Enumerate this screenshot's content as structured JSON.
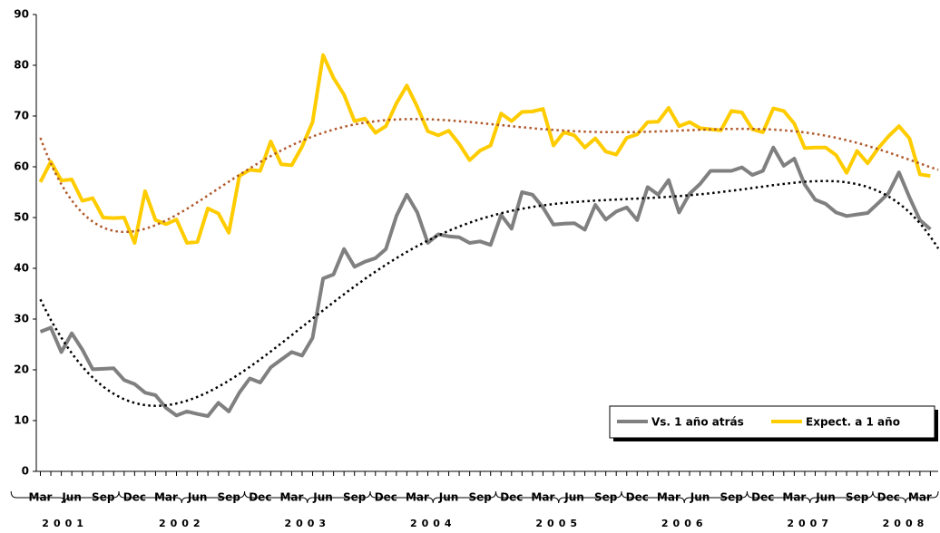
{
  "chart_data": {
    "type": "line",
    "categories": [
      "Mar",
      null,
      null,
      "Jun",
      null,
      null,
      "Sep",
      null,
      null,
      "Dec",
      null,
      null,
      "Mar",
      null,
      null,
      "Jun",
      null,
      null,
      "Sep",
      null,
      null,
      "Dec",
      null,
      null,
      "Mar",
      null,
      null,
      "Jun",
      null,
      null,
      "Sep",
      null,
      null,
      "Dec",
      null,
      null,
      "Mar",
      null,
      null,
      "Jun",
      null,
      null,
      "Sep",
      null,
      null,
      "Dec",
      null,
      null,
      "Mar",
      null,
      null,
      "Jun",
      null,
      null,
      "Sep",
      null,
      null,
      "Dec",
      null,
      null,
      "Mar",
      null,
      null,
      "Jun",
      null,
      null,
      "Sep",
      null,
      null,
      "Dec",
      null,
      null,
      "Mar",
      null,
      null,
      "Jun",
      null,
      null,
      "Sep",
      null,
      null,
      "Dec",
      null,
      null,
      "Mar",
      null
    ],
    "year_labels": [
      "2001",
      "2002",
      "2003",
      "2004",
      "2005",
      "2006",
      "2007",
      "2008"
    ],
    "series": [
      {
        "name": "Vs. 1 año atrás",
        "color": "#808080",
        "trendline": {
          "type": "polynomial",
          "order": 6,
          "color": "#000000"
        },
        "values": [
          27.5,
          28.3,
          23.5,
          27.2,
          24,
          20.1,
          20.2,
          20.3,
          18,
          17.2,
          15.5,
          15,
          12.5,
          11,
          11.8,
          11.3,
          10.9,
          13.5,
          11.8,
          15.5,
          18.3,
          17.5,
          20.5,
          22,
          23.5,
          22.8,
          26.3,
          38,
          38.8,
          43.8,
          40.3,
          41.3,
          42,
          43.8,
          50.3,
          54.5,
          51,
          45,
          46.7,
          46.3,
          46.1,
          45,
          45.3,
          44.6,
          50.5,
          47.8,
          55,
          54.5,
          52,
          48.6,
          48.8,
          48.9,
          47.6,
          52.5,
          49.6,
          51.2,
          52,
          49.5,
          56,
          54.5,
          57.4,
          51,
          54.7,
          56.6,
          59.2,
          59.2,
          59.2,
          59.9,
          58.4,
          59.2,
          63.8,
          60.2,
          61.6,
          56.5,
          53.5,
          52.7,
          51,
          50.3,
          50.6,
          50.9,
          52.8,
          54.8,
          58.9,
          54,
          49.5,
          47.7
        ]
      },
      {
        "name": "Expect. a 1 año",
        "color": "#ffcc00",
        "trendline": {
          "type": "polynomial",
          "order": 6,
          "color": "#b0582a"
        },
        "values": [
          57,
          61,
          57.3,
          57.5,
          53.3,
          53.8,
          50,
          49.9,
          50,
          45,
          55.2,
          49.5,
          48.7,
          49.6,
          45,
          45.2,
          51.8,
          50.8,
          47,
          58.2,
          59.4,
          59.2,
          65,
          60.5,
          60.3,
          64,
          68.8,
          82,
          77.5,
          74.2,
          69,
          69.5,
          66.7,
          68,
          72.5,
          76,
          71.8,
          67,
          66.2,
          67.1,
          64.5,
          61.3,
          63.2,
          64.2,
          70.5,
          69,
          70.8,
          70.9,
          71.4,
          64.2,
          66.8,
          66.2,
          63.8,
          65.6,
          63,
          62.4,
          65.7,
          66.4,
          68.8,
          68.9,
          71.6,
          68,
          68.8,
          67.6,
          67.4,
          67.2,
          71,
          70.7,
          67.4,
          66.8,
          71.5,
          71,
          68.5,
          63.7,
          63.8,
          63.8,
          62.3,
          58.8,
          63.1,
          60.7,
          63.6,
          66,
          68,
          65.6,
          58.5,
          58.2
        ]
      }
    ],
    "ylim": [
      0,
      90
    ],
    "yticks": [
      0,
      10,
      20,
      30,
      40,
      50,
      60,
      70,
      80,
      90
    ],
    "grid": false,
    "legend": "lower-right"
  }
}
